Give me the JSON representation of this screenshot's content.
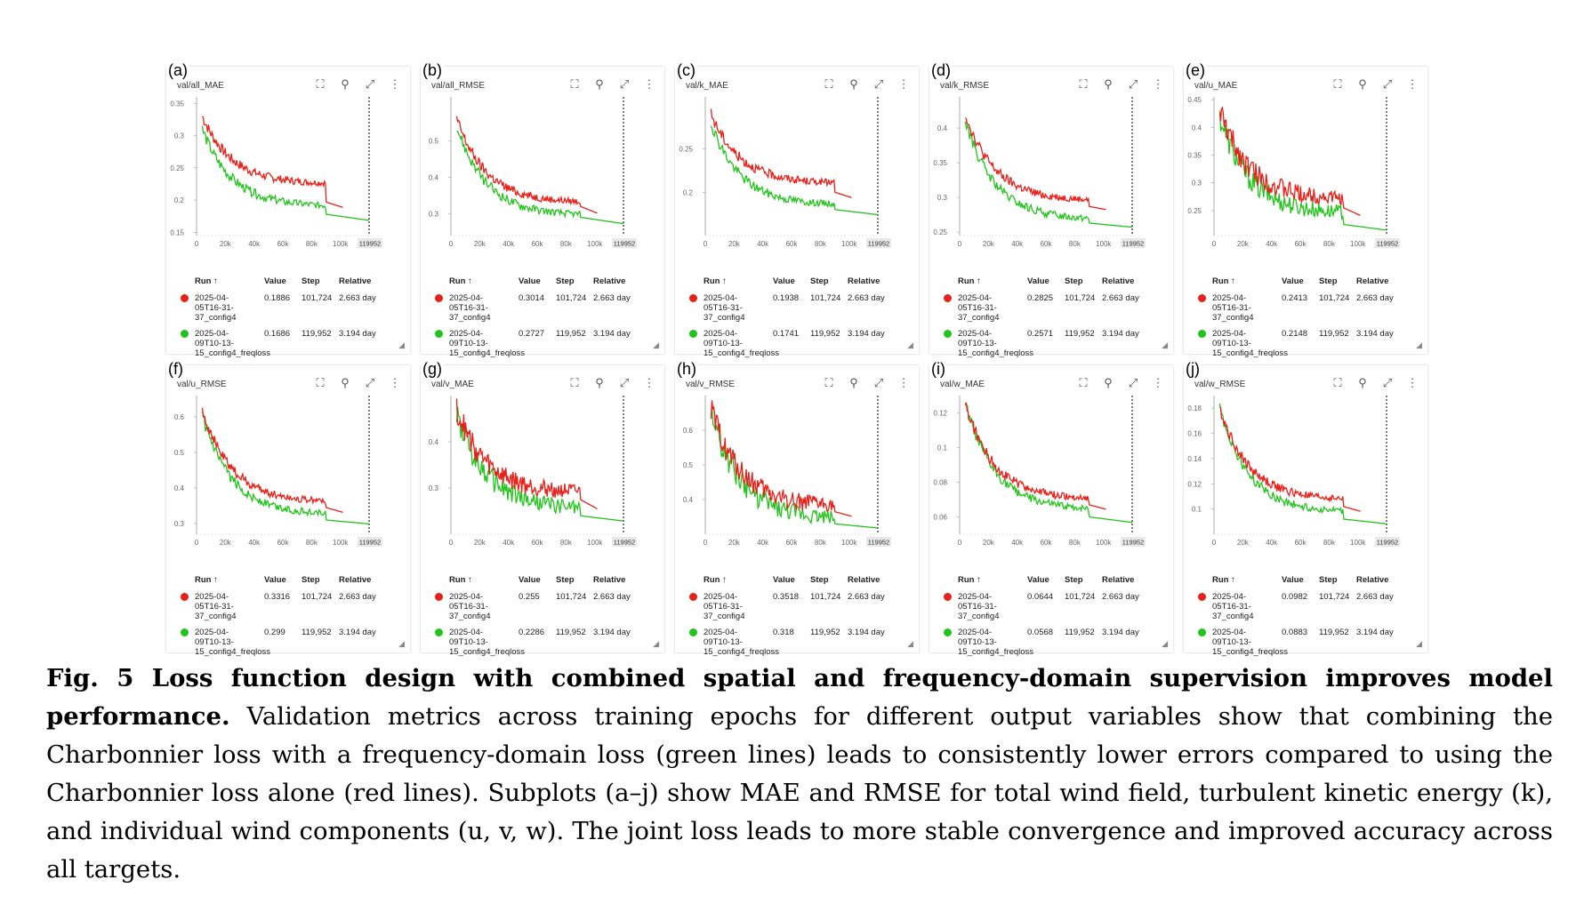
{
  "panels": [
    {
      "label": "(a)",
      "title": "val/all_MAE",
      "ylim": [
        0.145,
        0.36
      ],
      "yticks": [
        "0.35",
        "0.3",
        "0.25",
        "0.2",
        "0.15"
      ],
      "yvals": [
        0.35,
        0.3,
        0.25,
        0.2,
        0.15
      ],
      "red": {
        "start": 0.33,
        "mid": 0.225,
        "end": 0.1886,
        "drop": 0.197
      },
      "green": {
        "start": 0.31,
        "mid": 0.19,
        "end": 0.1686,
        "drop": 0.178
      },
      "runs": [
        {
          "name": "2025-04-05T16-31-37_config4",
          "value": "0.1886",
          "step": "101,724",
          "relative": "2.663 day"
        },
        {
          "name": "2025-04-09T10-13-15_config4_freqloss",
          "value": "0.1686",
          "step": "119,952",
          "relative": "3.194 day"
        }
      ]
    },
    {
      "label": "(b)",
      "title": "val/all_RMSE",
      "ylim": [
        0.24,
        0.62
      ],
      "yticks": [
        "0.5",
        "0.4",
        "0.3"
      ],
      "yvals": [
        0.5,
        0.4,
        0.3
      ],
      "red": {
        "start": 0.56,
        "mid": 0.33,
        "end": 0.3014,
        "drop": 0.32
      },
      "green": {
        "start": 0.54,
        "mid": 0.295,
        "end": 0.2727,
        "drop": 0.29
      },
      "runs": [
        {
          "name": "2025-04-05T16-31-37_config4",
          "value": "0.3014",
          "step": "101,724",
          "relative": "2.663 day"
        },
        {
          "name": "2025-04-09T10-13-15_config4_freqloss",
          "value": "0.2727",
          "step": "119,952",
          "relative": "3.194 day"
        }
      ]
    },
    {
      "label": "(c)",
      "title": "val/k_MAE",
      "ylim": [
        0.15,
        0.31
      ],
      "yticks": [
        "0.25",
        "0.2"
      ],
      "yvals": [
        0.25,
        0.2
      ],
      "red": {
        "start": 0.29,
        "mid": 0.21,
        "end": 0.1938,
        "drop": 0.2
      },
      "green": {
        "start": 0.28,
        "mid": 0.185,
        "end": 0.1741,
        "drop": 0.18
      },
      "runs": [
        {
          "name": "2025-04-05T16-31-37_config4",
          "value": "0.1938",
          "step": "101,724",
          "relative": "2.663 day"
        },
        {
          "name": "2025-04-09T10-13-15_config4_freqloss",
          "value": "0.1741",
          "step": "119,952",
          "relative": "3.194 day"
        }
      ]
    },
    {
      "label": "(d)",
      "title": "val/k_RMSE",
      "ylim": [
        0.245,
        0.445
      ],
      "yticks": [
        "0.4",
        "0.35",
        "0.3",
        "0.25"
      ],
      "yvals": [
        0.4,
        0.35,
        0.3,
        0.25
      ],
      "red": {
        "start": 0.42,
        "mid": 0.295,
        "end": 0.2825,
        "drop": 0.287
      },
      "green": {
        "start": 0.41,
        "mid": 0.268,
        "end": 0.2571,
        "drop": 0.263
      },
      "runs": [
        {
          "name": "2025-04-05T16-31-37_config4",
          "value": "0.2825",
          "step": "101,724",
          "relative": "2.663 day"
        },
        {
          "name": "2025-04-09T10-13-15_config4_freqloss",
          "value": "0.2571",
          "step": "119,952",
          "relative": "3.194 day"
        }
      ]
    },
    {
      "label": "(e)",
      "title": "val/u_MAE",
      "ylim": [
        0.205,
        0.455
      ],
      "yticks": [
        "0.45",
        "0.4",
        "0.35",
        "0.3",
        "0.25"
      ],
      "yvals": [
        0.45,
        0.4,
        0.35,
        0.3,
        0.25
      ],
      "red": {
        "start": 0.43,
        "mid": 0.27,
        "end": 0.2413,
        "drop": 0.255
      },
      "green": {
        "start": 0.42,
        "mid": 0.245,
        "end": 0.2148,
        "drop": 0.225
      },
      "runs": [
        {
          "name": "2025-04-05T16-31-37_config4",
          "value": "0.2413",
          "step": "101,724",
          "relative": "2.663 day"
        },
        {
          "name": "2025-04-09T10-13-15_config4_freqloss",
          "value": "0.2148",
          "step": "119,952",
          "relative": "3.194 day"
        }
      ]
    },
    {
      "label": "(f)",
      "title": "val/u_RMSE",
      "ylim": [
        0.27,
        0.66
      ],
      "yticks": [
        "0.6",
        "0.5",
        "0.4",
        "0.3"
      ],
      "yvals": [
        0.6,
        0.5,
        0.4,
        0.3
      ],
      "red": {
        "start": 0.62,
        "mid": 0.36,
        "end": 0.3316,
        "drop": 0.345
      },
      "green": {
        "start": 0.6,
        "mid": 0.325,
        "end": 0.299,
        "drop": 0.31
      },
      "runs": [
        {
          "name": "2025-04-05T16-31-37_config4",
          "value": "0.3316",
          "step": "101,724",
          "relative": "2.663 day"
        },
        {
          "name": "2025-04-09T10-13-15_config4_freqloss",
          "value": "0.299",
          "step": "119,952",
          "relative": "3.194 day"
        }
      ]
    },
    {
      "label": "(g)",
      "title": "val/v_MAE",
      "ylim": [
        0.2,
        0.5
      ],
      "yticks": [
        "0.4",
        "0.3"
      ],
      "yvals": [
        0.4,
        0.3
      ],
      "red": {
        "start": 0.47,
        "mid": 0.29,
        "end": 0.255,
        "drop": 0.275
      },
      "green": {
        "start": 0.46,
        "mid": 0.255,
        "end": 0.2286,
        "drop": 0.24
      },
      "runs": [
        {
          "name": "2025-04-05T16-31-37_config4",
          "value": "0.255",
          "step": "101,724",
          "relative": "2.663 day"
        },
        {
          "name": "2025-04-09T10-13-15_config4_freqloss",
          "value": "0.2286",
          "step": "119,952",
          "relative": "3.194 day"
        }
      ]
    },
    {
      "label": "(h)",
      "title": "val/v_RMSE",
      "ylim": [
        0.3,
        0.7
      ],
      "yticks": [
        "0.6",
        "0.5",
        "0.4"
      ],
      "yvals": [
        0.6,
        0.5,
        0.4
      ],
      "red": {
        "start": 0.66,
        "mid": 0.38,
        "end": 0.3518,
        "drop": 0.365
      },
      "green": {
        "start": 0.65,
        "mid": 0.345,
        "end": 0.318,
        "drop": 0.33
      },
      "runs": [
        {
          "name": "2025-04-05T16-31-37_config4",
          "value": "0.3518",
          "step": "101,724",
          "relative": "2.663 day"
        },
        {
          "name": "2025-04-09T10-13-15_config4_freqloss",
          "value": "0.318",
          "step": "119,952",
          "relative": "3.194 day"
        }
      ]
    },
    {
      "label": "(i)",
      "title": "val/w_MAE",
      "ylim": [
        0.05,
        0.13
      ],
      "yticks": [
        "0.12",
        "0.1",
        "0.08",
        "0.06"
      ],
      "yvals": [
        0.12,
        0.1,
        0.08,
        0.06
      ],
      "red": {
        "start": 0.125,
        "mid": 0.07,
        "end": 0.0644,
        "drop": 0.067
      },
      "green": {
        "start": 0.125,
        "mid": 0.064,
        "end": 0.0568,
        "drop": 0.06
      },
      "runs": [
        {
          "name": "2025-04-05T16-31-37_config4",
          "value": "0.0644",
          "step": "101,724",
          "relative": "2.663 day"
        },
        {
          "name": "2025-04-09T10-13-15_config4_freqloss",
          "value": "0.0568",
          "step": "119,952",
          "relative": "3.194 day"
        }
      ]
    },
    {
      "label": "(j)",
      "title": "val/w_RMSE",
      "ylim": [
        0.08,
        0.19
      ],
      "yticks": [
        "0.18",
        "0.16",
        "0.14",
        "0.12",
        "0.1"
      ],
      "yvals": [
        0.18,
        0.16,
        0.14,
        0.12,
        0.1
      ],
      "red": {
        "start": 0.18,
        "mid": 0.107,
        "end": 0.0982,
        "drop": 0.102
      },
      "green": {
        "start": 0.18,
        "mid": 0.097,
        "end": 0.0883,
        "drop": 0.092
      },
      "runs": [
        {
          "name": "2025-04-05T16-31-37_config4",
          "value": "0.0982",
          "step": "101,724",
          "relative": "2.663 day"
        },
        {
          "name": "2025-04-09T10-13-15_config4_freqloss",
          "value": "0.0883",
          "step": "119,952",
          "relative": "3.194 day"
        }
      ]
    }
  ],
  "xticks": [
    "0",
    "20k",
    "40k",
    "60k",
    "80k",
    "100k"
  ],
  "xvals": [
    0,
    20000,
    40000,
    60000,
    80000,
    100000
  ],
  "xmax_label": "119952",
  "legend_headers": {
    "run": "Run ↑",
    "value": "Value",
    "step": "Step",
    "relative": "Relative"
  },
  "colors": {
    "red": "#e8201a",
    "green": "#22c41c",
    "axis": "#999999",
    "tick": "#666666"
  },
  "icons": [
    "fit-domain-icon",
    "pin-icon",
    "fullscreen-icon",
    "more-vert-icon"
  ],
  "caption": {
    "bold": "Fig. 5   Loss function design with combined spatial and frequency-domain supervision improves model performance.",
    "text": " Validation metrics across training epochs for different output variables show that combining the Charbonnier loss with a frequency-domain loss (green lines) leads to consistently lower errors compared to using the Charbonnier loss alone (red lines). Subplots (a–j) show MAE and RMSE for total wind field, turbulent kinetic energy (k), and individual wind components (u, v, w). The joint loss leads to more stable convergence and improved accuracy across all targets."
  },
  "chart_data": {
    "type": "line",
    "x_axis": "Step",
    "xlim": [
      0,
      119952
    ],
    "series": [
      {
        "name": "2025-04-05T16-31-37_config4",
        "color": "#e8201a",
        "final_step": 101724
      },
      {
        "name": "2025-04-09T10-13-15_config4_freqloss",
        "color": "#22c41c",
        "final_step": 119952
      }
    ]
  }
}
